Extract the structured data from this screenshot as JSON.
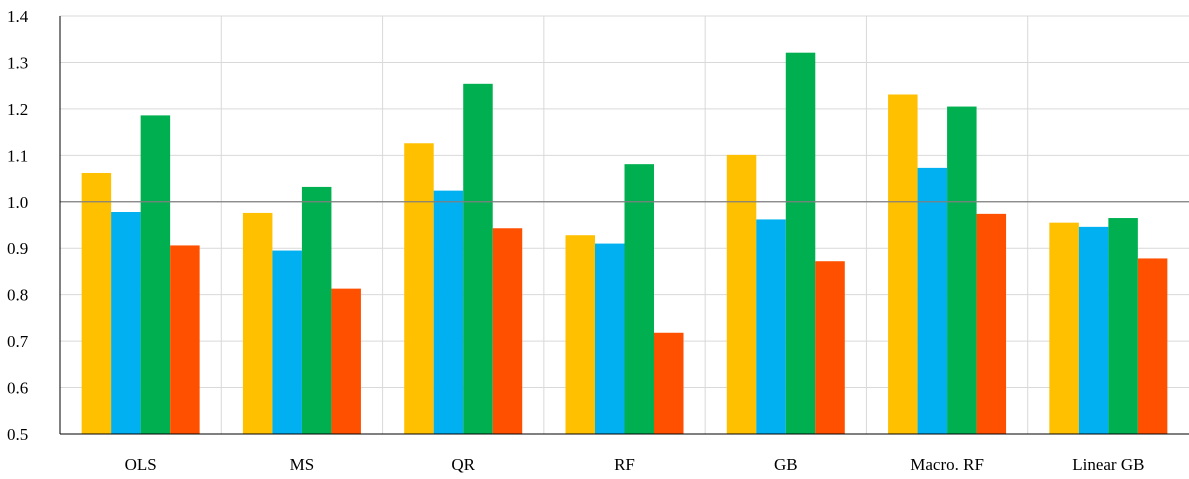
{
  "chart_data": {
    "type": "bar",
    "categories": [
      "OLS",
      "MS",
      "QR",
      "RF",
      "GB",
      "Macro. RF",
      "Linear GB"
    ],
    "series": [
      {
        "values": [
          1.062,
          0.976,
          1.126,
          0.928,
          1.101,
          1.231,
          0.955
        ],
        "color": "#FFC000"
      },
      {
        "values": [
          0.978,
          0.895,
          1.024,
          0.91,
          0.962,
          1.073,
          0.946
        ],
        "color": "#00B0F0"
      },
      {
        "values": [
          1.186,
          1.032,
          1.254,
          1.081,
          1.321,
          1.205,
          0.965
        ],
        "color": "#00B050"
      },
      {
        "values": [
          0.906,
          0.813,
          0.943,
          0.718,
          0.872,
          0.974,
          0.878
        ],
        "color": "#FF5000"
      }
    ],
    "ylim": [
      0.5,
      1.4
    ],
    "yticks": [
      "0.5",
      "0.6",
      "0.7",
      "0.8",
      "0.9",
      "1.0",
      "1.1",
      "1.2",
      "1.3",
      "1.4"
    ],
    "reference_line": 1.0,
    "grid": true,
    "title": "",
    "xlabel": "",
    "ylabel": ""
  }
}
